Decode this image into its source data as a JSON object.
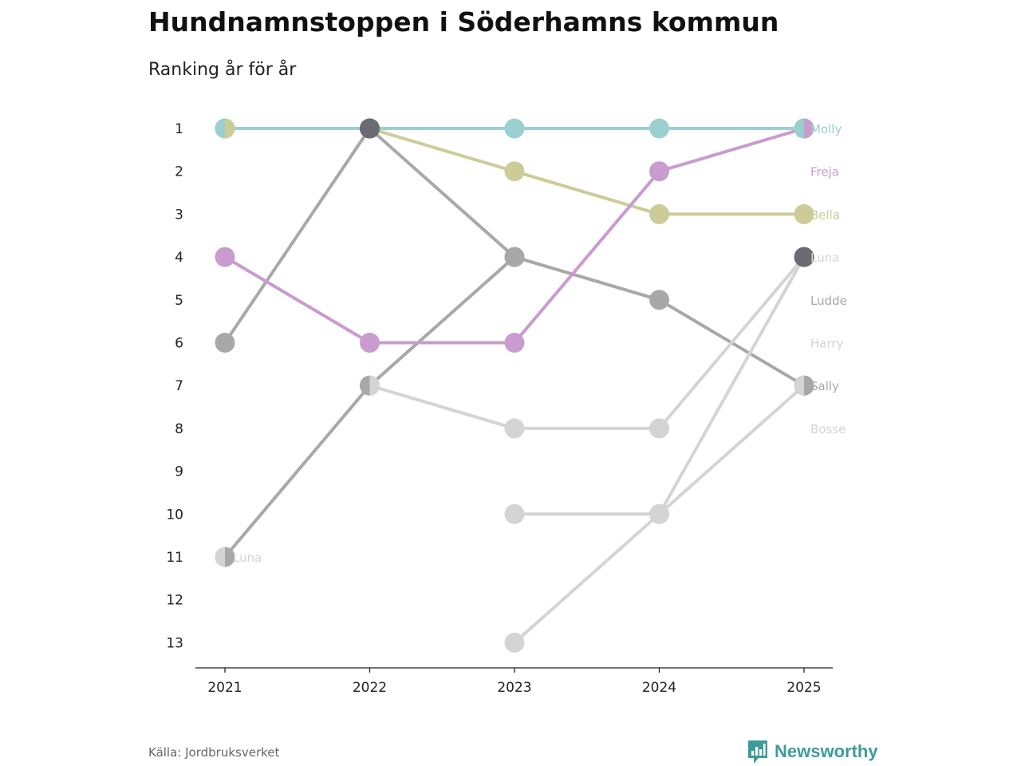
{
  "title": "Hundnamnstoppen i Söderhamns kommun",
  "subtitle": "Ranking år för år",
  "source": "Källa: Jordbruksverket",
  "brand": {
    "name": "Newsworthy",
    "color": "#3d9c99",
    "icon": "bar-chart-speech-icon"
  },
  "colors": {
    "Molly": "#9ccfcf",
    "Freja": "#c99bcf",
    "Bella": "#cccc99",
    "highlight_dark": "#6b6b73",
    "gray_mid": "#a8a8a8",
    "gray_light": "#d4d4d4",
    "axis": "#222222"
  },
  "chart_data": {
    "type": "line",
    "subtype": "bump",
    "x": [
      "2021",
      "2022",
      "2023",
      "2024",
      "2025"
    ],
    "y_ticks": [
      "1",
      "2",
      "3",
      "4",
      "5",
      "6",
      "7",
      "8",
      "9",
      "10",
      "11",
      "12",
      "13"
    ],
    "ylim": [
      1,
      13
    ],
    "y_inverted": true,
    "series": [
      {
        "name": "Gray A",
        "label": "",
        "color": "#a8a8a8",
        "values": [
          6,
          1,
          4,
          5,
          7
        ],
        "dot_colors": [
          "#a8a8a8",
          "#6b6b73",
          "#a8a8a8",
          "#a8a8a8",
          "#a8a8a8"
        ]
      },
      {
        "name": "Gray B",
        "label": "",
        "color": "#a8a8a8",
        "values": [
          11,
          7,
          4,
          null,
          null
        ],
        "dot_colors": [
          "#a8a8a8",
          "#a8a8a8",
          "#a8a8a8",
          null,
          null
        ]
      },
      {
        "name": "Light A",
        "label": "",
        "color": "#d4d4d4",
        "values": [
          null,
          7,
          8,
          8,
          4
        ],
        "dot_colors": [
          null,
          "#d4d4d4",
          "#d4d4d4",
          "#d4d4d4",
          "#6b6b73"
        ]
      },
      {
        "name": "Light B",
        "label": "",
        "color": "#d4d4d4",
        "values": [
          null,
          null,
          10,
          10,
          4
        ],
        "dot_colors": [
          null,
          null,
          "#d4d4d4",
          "#d4d4d4",
          "#6b6b73"
        ]
      },
      {
        "name": "Light C",
        "label": "",
        "color": "#d4d4d4",
        "values": [
          null,
          null,
          13,
          10,
          7
        ],
        "dot_colors": [
          null,
          null,
          "#d4d4d4",
          "#d4d4d4",
          "#a8a8a8"
        ]
      },
      {
        "name": "Bella",
        "label": "Bella",
        "color": "#cccc99",
        "values": [
          1,
          1,
          2,
          3,
          3
        ],
        "dot_colors": [
          "#cccc99",
          "#6b6b73",
          "#cccc99",
          "#cccc99",
          "#cccc99"
        ]
      },
      {
        "name": "Freja",
        "label": "Freja",
        "color": "#c99bcf",
        "values": [
          4,
          6,
          6,
          2,
          1
        ],
        "dot_colors": [
          "#c99bcf",
          "#c99bcf",
          "#c99bcf",
          "#c99bcf",
          "#c99bcf"
        ]
      },
      {
        "name": "Molly",
        "label": "Molly",
        "color": "#9ccfcf",
        "values": [
          1,
          1,
          1,
          1,
          1
        ],
        "dot_colors": [
          "#9ccfcf",
          "#6b6b73",
          "#9ccfcf",
          "#9ccfcf",
          "#9ccfcf"
        ]
      }
    ],
    "split_dots": [
      {
        "x": "2021",
        "rank": 1,
        "left": "#9ccfcf",
        "right": "#cccc99"
      },
      {
        "x": "2021",
        "rank": 11,
        "left": "#d4d4d4",
        "right": "#a8a8a8"
      },
      {
        "x": "2022",
        "rank": 7,
        "left": "#a8a8a8",
        "right": "#d4d4d4"
      },
      {
        "x": "2025",
        "rank": 1,
        "left": "#9ccfcf",
        "right": "#c99bcf"
      },
      {
        "x": "2025",
        "rank": 7,
        "left": "#d4d4d4",
        "right": "#a8a8a8"
      }
    ],
    "end_labels": [
      {
        "text": "Molly",
        "rank": 1,
        "color": "#9ccfcf"
      },
      {
        "text": "Freja",
        "rank": 2,
        "color": "#c99bcf"
      },
      {
        "text": "Bella",
        "rank": 3,
        "color": "#cccc99"
      },
      {
        "text": "Luna",
        "rank": 4,
        "color": "#d4d4d4"
      },
      {
        "text": "Ludde",
        "rank": 5,
        "color": "#a8a8a8"
      },
      {
        "text": "Harry",
        "rank": 6,
        "color": "#d4d4d4"
      },
      {
        "text": "Sally",
        "rank": 7,
        "color": "#a8a8a8"
      },
      {
        "text": "Bosse",
        "rank": 8,
        "color": "#d4d4d4"
      }
    ],
    "inline_labels": [
      {
        "text": "Luna",
        "x": "2021",
        "rank": 11,
        "color": "#d4d4d4"
      }
    ]
  }
}
